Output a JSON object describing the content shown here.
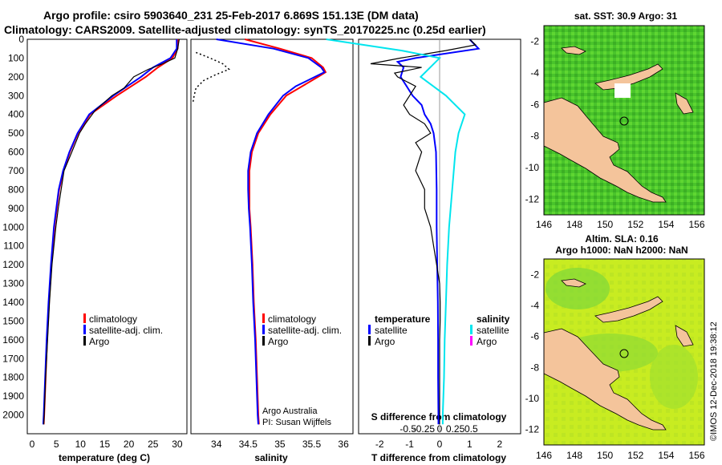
{
  "title": {
    "line1": "Argo profile: csiro 5903640_231 25-Feb-2017 6.869S 151.13E (DM data)",
    "line2": "Climatology: CARS2009. Satellite-adjusted climatology: synTS_20170225.nc (0.25d earlier)"
  },
  "colors": {
    "climatology": "#ff0000",
    "satellite": "#0000ff",
    "argo": "#000000",
    "sat_salinity": "#00e5ee",
    "argo_salinity": "#ff00ff"
  },
  "credits": {
    "line1": "Argo Australia",
    "line2": "PI: Susan Wijffels"
  },
  "timestamp": "©IMOS 12-Dec-2018 19:38:12",
  "depth_ticks": [
    "0",
    "100",
    "200",
    "300",
    "400",
    "500",
    "600",
    "700",
    "800",
    "900",
    "1000",
    "1100",
    "1200",
    "1300",
    "1400",
    "1500",
    "1600",
    "1700",
    "1800",
    "1900",
    "2000"
  ],
  "chart_data": [
    {
      "type": "line",
      "panel": "temperature",
      "xlabel": "temperature (deg C)",
      "xlim": [
        -1,
        32
      ],
      "ylim": [
        2100,
        0
      ],
      "x_ticks": [
        "0",
        "5",
        "10",
        "15",
        "20",
        "25",
        "30"
      ],
      "legend": [
        "climatology",
        "satellite-adj. clim.",
        "Argo"
      ],
      "series": [
        {
          "name": "climatology",
          "depth": [
            0,
            50,
            100,
            150,
            200,
            300,
            400,
            500,
            600,
            700,
            800,
            1000,
            1200,
            1400,
            1600,
            1800,
            2000,
            2050
          ],
          "values": [
            30.2,
            30.1,
            29.0,
            26.0,
            23.5,
            17.5,
            12.0,
            9.5,
            7.8,
            6.5,
            5.6,
            4.6,
            4.0,
            3.5,
            3.1,
            2.8,
            2.5,
            2.4
          ]
        },
        {
          "name": "satellite-adj. clim.",
          "depth": [
            0,
            50,
            100,
            150,
            200,
            300,
            400,
            500,
            600,
            700,
            800,
            1000,
            1200,
            1400,
            1600,
            1800,
            2000,
            2050
          ],
          "values": [
            29.9,
            29.9,
            28.6,
            25.0,
            22.5,
            16.8,
            11.8,
            9.4,
            7.7,
            6.4,
            5.5,
            4.5,
            3.9,
            3.4,
            3.0,
            2.7,
            2.4,
            2.3
          ]
        },
        {
          "name": "Argo",
          "depth": [
            0,
            50,
            100,
            130,
            160,
            200,
            260,
            300,
            380,
            450,
            500,
            600,
            700,
            800,
            900,
            1000,
            1200,
            1400,
            1600,
            1800,
            2000,
            2050
          ],
          "values": [
            30.4,
            30.1,
            29.5,
            27.0,
            24.0,
            21.0,
            19.0,
            16.5,
            13.0,
            11.0,
            9.8,
            8.2,
            6.6,
            6.0,
            5.4,
            4.9,
            4.1,
            3.6,
            3.2,
            2.8,
            2.5,
            2.4
          ]
        }
      ]
    },
    {
      "type": "line",
      "panel": "salinity",
      "xlabel": "salinity",
      "xlim": [
        33.6,
        36.15
      ],
      "ylim": [
        2100,
        0
      ],
      "x_ticks": [
        "34",
        "34.5",
        "35",
        "35.5",
        "36"
      ],
      "legend": [
        "climatology",
        "satellite-adj. clim.",
        "Argo"
      ],
      "series": [
        {
          "name": "climatology",
          "depth": [
            0,
            50,
            100,
            150,
            175,
            200,
            250,
            300,
            400,
            500,
            600,
            700,
            800,
            900,
            1000,
            1200,
            1400,
            1600,
            1800,
            2000,
            2050
          ],
          "values": [
            34.45,
            35.0,
            35.5,
            35.68,
            35.72,
            35.6,
            35.35,
            35.1,
            34.85,
            34.66,
            34.56,
            34.52,
            34.52,
            34.52,
            34.54,
            34.57,
            34.59,
            34.62,
            34.64,
            34.66,
            34.67
          ]
        },
        {
          "name": "satellite-adj. clim.",
          "depth": [
            0,
            50,
            100,
            150,
            175,
            200,
            250,
            300,
            400,
            500,
            600,
            700,
            800,
            900,
            1000,
            1200,
            1400,
            1600,
            1800,
            2000,
            2050
          ],
          "values": [
            34.0,
            34.9,
            35.45,
            35.65,
            35.7,
            35.55,
            35.25,
            35.05,
            34.82,
            34.64,
            34.54,
            34.5,
            34.5,
            34.51,
            34.53,
            34.56,
            34.58,
            34.61,
            34.63,
            34.65,
            34.66
          ]
        },
        {
          "name": "Argo",
          "depth": [
            70,
            100,
            130,
            160,
            190,
            220,
            260,
            300,
            340
          ],
          "values": [
            33.68,
            33.9,
            34.1,
            34.2,
            33.98,
            33.8,
            33.68,
            33.65,
            33.63
          ],
          "style": "dotted"
        }
      ]
    },
    {
      "type": "line",
      "panel": "difference",
      "xlabel": "T difference from climatology",
      "xlabel2": "S difference from climatology",
      "xlim": [
        -2.7,
        2.7
      ],
      "ylim": [
        2100,
        0
      ],
      "x_ticks": [
        "-2",
        "-1",
        "0",
        "1",
        "2"
      ],
      "x2_ticks": [
        "-0.5",
        "-0.25",
        "0",
        "0.25",
        "0.5"
      ],
      "legend_left_title": "temperature",
      "legend_left": [
        "satellite",
        "Argo"
      ],
      "legend_right_title": "salinity",
      "legend_right": [
        "satellite",
        "Argo"
      ],
      "series": [
        {
          "name": "temperature satellite",
          "depth": [
            0,
            50,
            100,
            120,
            150,
            200,
            250,
            300,
            350,
            400,
            450,
            500,
            600,
            800,
            1000,
            1200,
            1400,
            1600,
            1800,
            2000,
            2050
          ],
          "values": [
            1.0,
            1.3,
            -0.8,
            -1.4,
            -1.2,
            -1.3,
            -1.1,
            -0.9,
            -0.6,
            -0.5,
            -0.3,
            -0.2,
            -0.12,
            -0.1,
            -0.1,
            -0.08,
            -0.06,
            -0.05,
            -0.05,
            -0.04,
            -0.04
          ]
        },
        {
          "name": "temperature Argo",
          "depth": [
            0,
            30,
            60,
            100,
            130,
            150,
            180,
            200,
            250,
            300,
            350,
            400,
            450,
            500,
            550,
            600,
            650,
            700,
            800,
            900,
            1000,
            1100,
            1200,
            1300,
            1400,
            1500,
            1600,
            1700,
            1800,
            1900,
            2000,
            2050
          ],
          "values": [
            1.0,
            1.2,
            0.2,
            -1.3,
            -2.3,
            -0.6,
            -1.5,
            -1.4,
            -0.8,
            -1.0,
            -1.2,
            -1.0,
            -0.5,
            -0.3,
            -0.8,
            -0.6,
            -0.7,
            -0.8,
            -0.5,
            -0.5,
            -0.3,
            -0.2,
            -0.1,
            0.0,
            0.02,
            0.02,
            0.0,
            0.0,
            0.0,
            0.0,
            0.0,
            0.0
          ]
        },
        {
          "name": "salinity satellite",
          "depth": [
            0,
            60,
            100,
            200,
            300,
            400,
            500,
            600,
            800,
            1000,
            1200,
            1400,
            1600,
            1800,
            2000,
            2050
          ],
          "values": [
            -1.8,
            -0.6,
            0.0,
            -0.3,
            0.1,
            0.4,
            0.3,
            0.25,
            0.2,
            0.15,
            0.12,
            0.1,
            0.08,
            0.07,
            0.05,
            0.05
          ]
        }
      ]
    },
    {
      "type": "heatmap",
      "panel": "map_sst",
      "title": "sat. SST: 30.9 Argo: 31",
      "x_ticks": [
        "146",
        "148",
        "150",
        "152",
        "154",
        "156"
      ],
      "y_ticks": [
        "-2",
        "-4",
        "-6",
        "-8",
        "-10",
        "-12"
      ],
      "marker": {
        "lon": 151.13,
        "lat": -6.869
      }
    },
    {
      "type": "heatmap",
      "panel": "map_sla",
      "title": "Altim. SLA: 0.16",
      "subtitle": "Argo h1000: NaN h2000: NaN",
      "x_ticks": [
        "146",
        "148",
        "150",
        "152",
        "154",
        "156"
      ],
      "y_ticks": [
        "-2",
        "-4",
        "-6",
        "-8",
        "-10",
        "-12"
      ],
      "marker": {
        "lon": 151.13,
        "lat": -6.869
      }
    }
  ]
}
